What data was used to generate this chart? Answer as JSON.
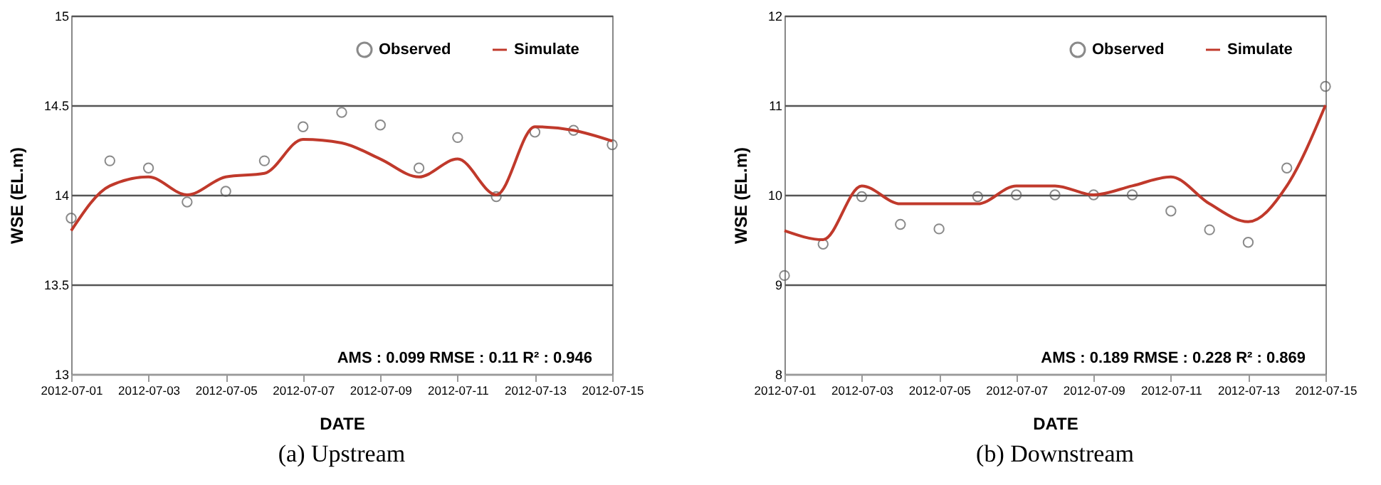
{
  "chart_data": [
    {
      "type": "line",
      "title": "(a)  Upstream",
      "xlabel": "DATE",
      "ylabel": "WSE (EL.m)",
      "x": [
        "2012-07-01",
        "2012-07-02",
        "2012-07-03",
        "2012-07-04",
        "2012-07-05",
        "2012-07-06",
        "2012-07-07",
        "2012-07-08",
        "2012-07-09",
        "2012-07-10",
        "2012-07-11",
        "2012-07-12",
        "2012-07-13",
        "2012-07-14",
        "2012-07-15"
      ],
      "series": [
        {
          "name": "Observed",
          "type": "scatter",
          "marker": "circle",
          "color": "#595959",
          "values": [
            13.87,
            14.19,
            14.15,
            13.96,
            14.02,
            14.19,
            14.38,
            14.46,
            14.39,
            14.15,
            14.32,
            13.99,
            14.35,
            14.36,
            14.28
          ]
        },
        {
          "name": "Simulate",
          "type": "line",
          "marker": "none",
          "line_style": "solid",
          "color": "#c0392b",
          "values": [
            13.8,
            14.05,
            14.1,
            14.0,
            14.1,
            14.12,
            14.31,
            14.29,
            14.2,
            14.1,
            14.2,
            14.0,
            14.38,
            14.36,
            14.3
          ]
        }
      ],
      "xlim": [
        "2012-07-01",
        "2012-07-15"
      ],
      "xticks": [
        "2012-07-01",
        "2012-07-03",
        "2012-07-05",
        "2012-07-07",
        "2012-07-09",
        "2012-07-11",
        "2012-07-13",
        "2012-07-15"
      ],
      "ylim": [
        13,
        15
      ],
      "yticks": [
        13,
        13.5,
        14,
        14.5,
        15
      ],
      "grid": "y",
      "legend": "top right",
      "annotations": [
        "AMS : 0.099 RMSE : 0.11 R² : 0.946"
      ]
    },
    {
      "type": "line",
      "title": "(b)  Downstream",
      "xlabel": "DATE",
      "ylabel": "WSE (EL.m)",
      "x": [
        "2012-07-01",
        "2012-07-02",
        "2012-07-03",
        "2012-07-04",
        "2012-07-05",
        "2012-07-06",
        "2012-07-07",
        "2012-07-08",
        "2012-07-09",
        "2012-07-10",
        "2012-07-11",
        "2012-07-12",
        "2012-07-13",
        "2012-07-14",
        "2012-07-15"
      ],
      "series": [
        {
          "name": "Observed",
          "type": "scatter",
          "marker": "circle",
          "color": "#595959",
          "values": [
            9.1,
            9.45,
            9.98,
            9.67,
            9.62,
            9.98,
            10.0,
            10.0,
            10.0,
            10.0,
            9.82,
            9.61,
            9.47,
            10.3,
            11.21
          ]
        },
        {
          "name": "Simulate",
          "type": "line",
          "marker": "none",
          "line_style": "solid",
          "color": "#c0392b",
          "values": [
            9.6,
            9.5,
            10.1,
            9.9,
            9.9,
            9.9,
            10.1,
            10.1,
            10.0,
            10.1,
            10.2,
            9.9,
            9.7,
            10.1,
            11.0
          ]
        }
      ],
      "xlim": [
        "2012-07-01",
        "2012-07-15"
      ],
      "xticks": [
        "2012-07-01",
        "2012-07-03",
        "2012-07-05",
        "2012-07-07",
        "2012-07-09",
        "2012-07-11",
        "2012-07-13",
        "2012-07-15"
      ],
      "ylim": [
        8,
        12
      ],
      "yticks": [
        8,
        9,
        10,
        11,
        12
      ],
      "grid": "y",
      "legend": "top right",
      "annotations": [
        "AMS : 0.189 RMSE : 0.228 R² : 0.869"
      ]
    }
  ]
}
